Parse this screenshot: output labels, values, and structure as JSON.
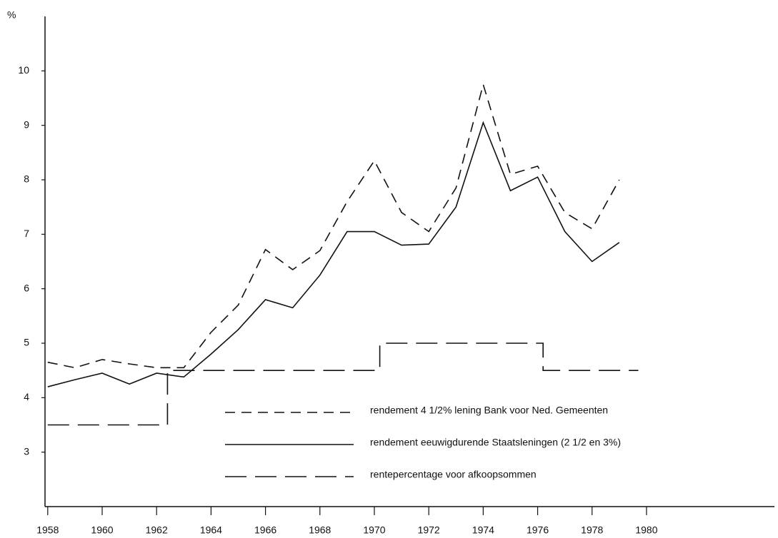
{
  "chart_data": {
    "type": "line",
    "y_unit": "%",
    "xlim": [
      1957.9,
      1984.7
    ],
    "xticks": [
      1958,
      1960,
      1962,
      1964,
      1966,
      1968,
      1970,
      1972,
      1974,
      1976,
      1978,
      1980
    ],
    "ylim": [
      2,
      11
    ],
    "yticks": [
      3,
      4,
      5,
      6,
      7,
      8,
      9,
      10
    ],
    "grid": false,
    "legend": "lower-center",
    "series": [
      {
        "name": "rendement 4 1/2% lening Bank voor Ned. Gemeenten",
        "color": "#111111",
        "linestyle": "dashed",
        "x": [
          1958,
          1959,
          1960,
          1961,
          1962,
          1963,
          1964,
          1965,
          1966,
          1967,
          1968,
          1969,
          1970,
          1971,
          1972,
          1973,
          1974,
          1975,
          1976,
          1977,
          1978,
          1979
        ],
        "values": [
          4.65,
          4.55,
          4.7,
          4.62,
          4.55,
          4.55,
          5.2,
          5.7,
          6.72,
          6.35,
          6.7,
          7.6,
          8.35,
          7.4,
          7.05,
          7.85,
          9.75,
          8.1,
          8.25,
          7.4,
          7.1,
          8.0
        ]
      },
      {
        "name": "rendement eeuwigdurende Staatsleningen (2 1/2 en 3%)",
        "color": "#111111",
        "linestyle": "solid",
        "x": [
          1958,
          1959,
          1960,
          1961,
          1962,
          1963,
          1964,
          1965,
          1966,
          1967,
          1968,
          1969,
          1970,
          1971,
          1972,
          1973,
          1974,
          1975,
          1976,
          1977,
          1978,
          1979
        ],
        "values": [
          4.2,
          4.33,
          4.45,
          4.25,
          4.45,
          4.38,
          4.8,
          5.25,
          5.8,
          5.65,
          6.25,
          7.05,
          7.05,
          6.8,
          6.82,
          7.5,
          9.05,
          7.8,
          8.05,
          7.05,
          6.5,
          6.85
        ]
      },
      {
        "name": "rentepercentage voor afkoopsommen",
        "color": "#111111",
        "linestyle": "longdash",
        "x": [
          1958,
          1962.4,
          1962.4,
          1970.2,
          1970.2,
          1976.2,
          1976.2,
          1979.7
        ],
        "values": [
          3.5,
          3.5,
          4.5,
          4.5,
          5,
          5,
          4.5,
          4.5
        ]
      }
    ]
  }
}
